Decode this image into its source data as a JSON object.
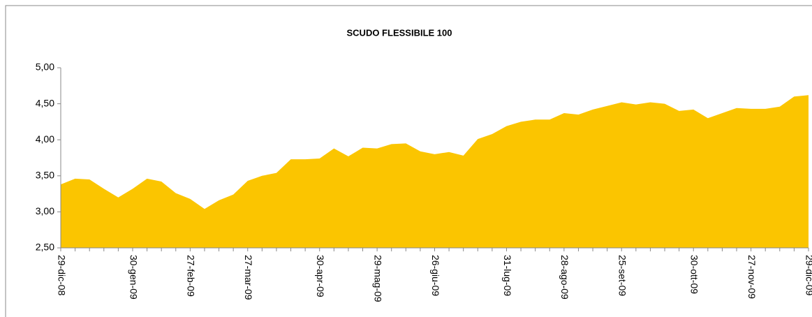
{
  "chart_data": {
    "type": "area",
    "title": "SCUDO FLESSIBILE 100",
    "color": "#fbc500",
    "categories": [
      "29-dic-08",
      null,
      null,
      null,
      null,
      "30-gen-09",
      null,
      null,
      null,
      "27-feb-09",
      null,
      null,
      null,
      "27-mar-09",
      null,
      null,
      null,
      null,
      "30-apr-09",
      null,
      null,
      null,
      "29-mag-09",
      null,
      null,
      null,
      "26-giu-09",
      null,
      null,
      null,
      null,
      "31-lug-09",
      null,
      null,
      null,
      "28-ago-09",
      null,
      null,
      null,
      "25-set-09",
      null,
      null,
      null,
      null,
      "30-ott-09",
      null,
      null,
      null,
      "27-nov-09",
      null,
      null,
      null,
      "29-dic-09"
    ],
    "values": [
      3.38,
      3.46,
      3.45,
      3.32,
      3.2,
      3.32,
      3.46,
      3.42,
      3.26,
      3.18,
      3.04,
      3.16,
      3.24,
      3.43,
      3.5,
      3.54,
      3.73,
      3.73,
      3.74,
      3.88,
      3.77,
      3.89,
      3.88,
      3.94,
      3.95,
      3.84,
      3.8,
      3.83,
      3.78,
      4.01,
      4.08,
      4.19,
      4.25,
      4.28,
      4.28,
      4.37,
      4.35,
      4.42,
      4.47,
      4.52,
      4.49,
      4.52,
      4.5,
      4.4,
      4.42,
      4.3,
      4.37,
      4.44,
      4.43,
      4.43,
      4.46,
      4.6,
      4.62
    ],
    "ylim": [
      2.5,
      5.0
    ],
    "yticks": [
      {
        "value": 2.5,
        "label": "2,50"
      },
      {
        "value": 3.0,
        "label": "3,00"
      },
      {
        "value": 3.5,
        "label": "3,50"
      },
      {
        "value": 4.0,
        "label": "4,00"
      },
      {
        "value": 4.5,
        "label": "4,50"
      },
      {
        "value": 5.0,
        "label": "5,00"
      }
    ]
  }
}
